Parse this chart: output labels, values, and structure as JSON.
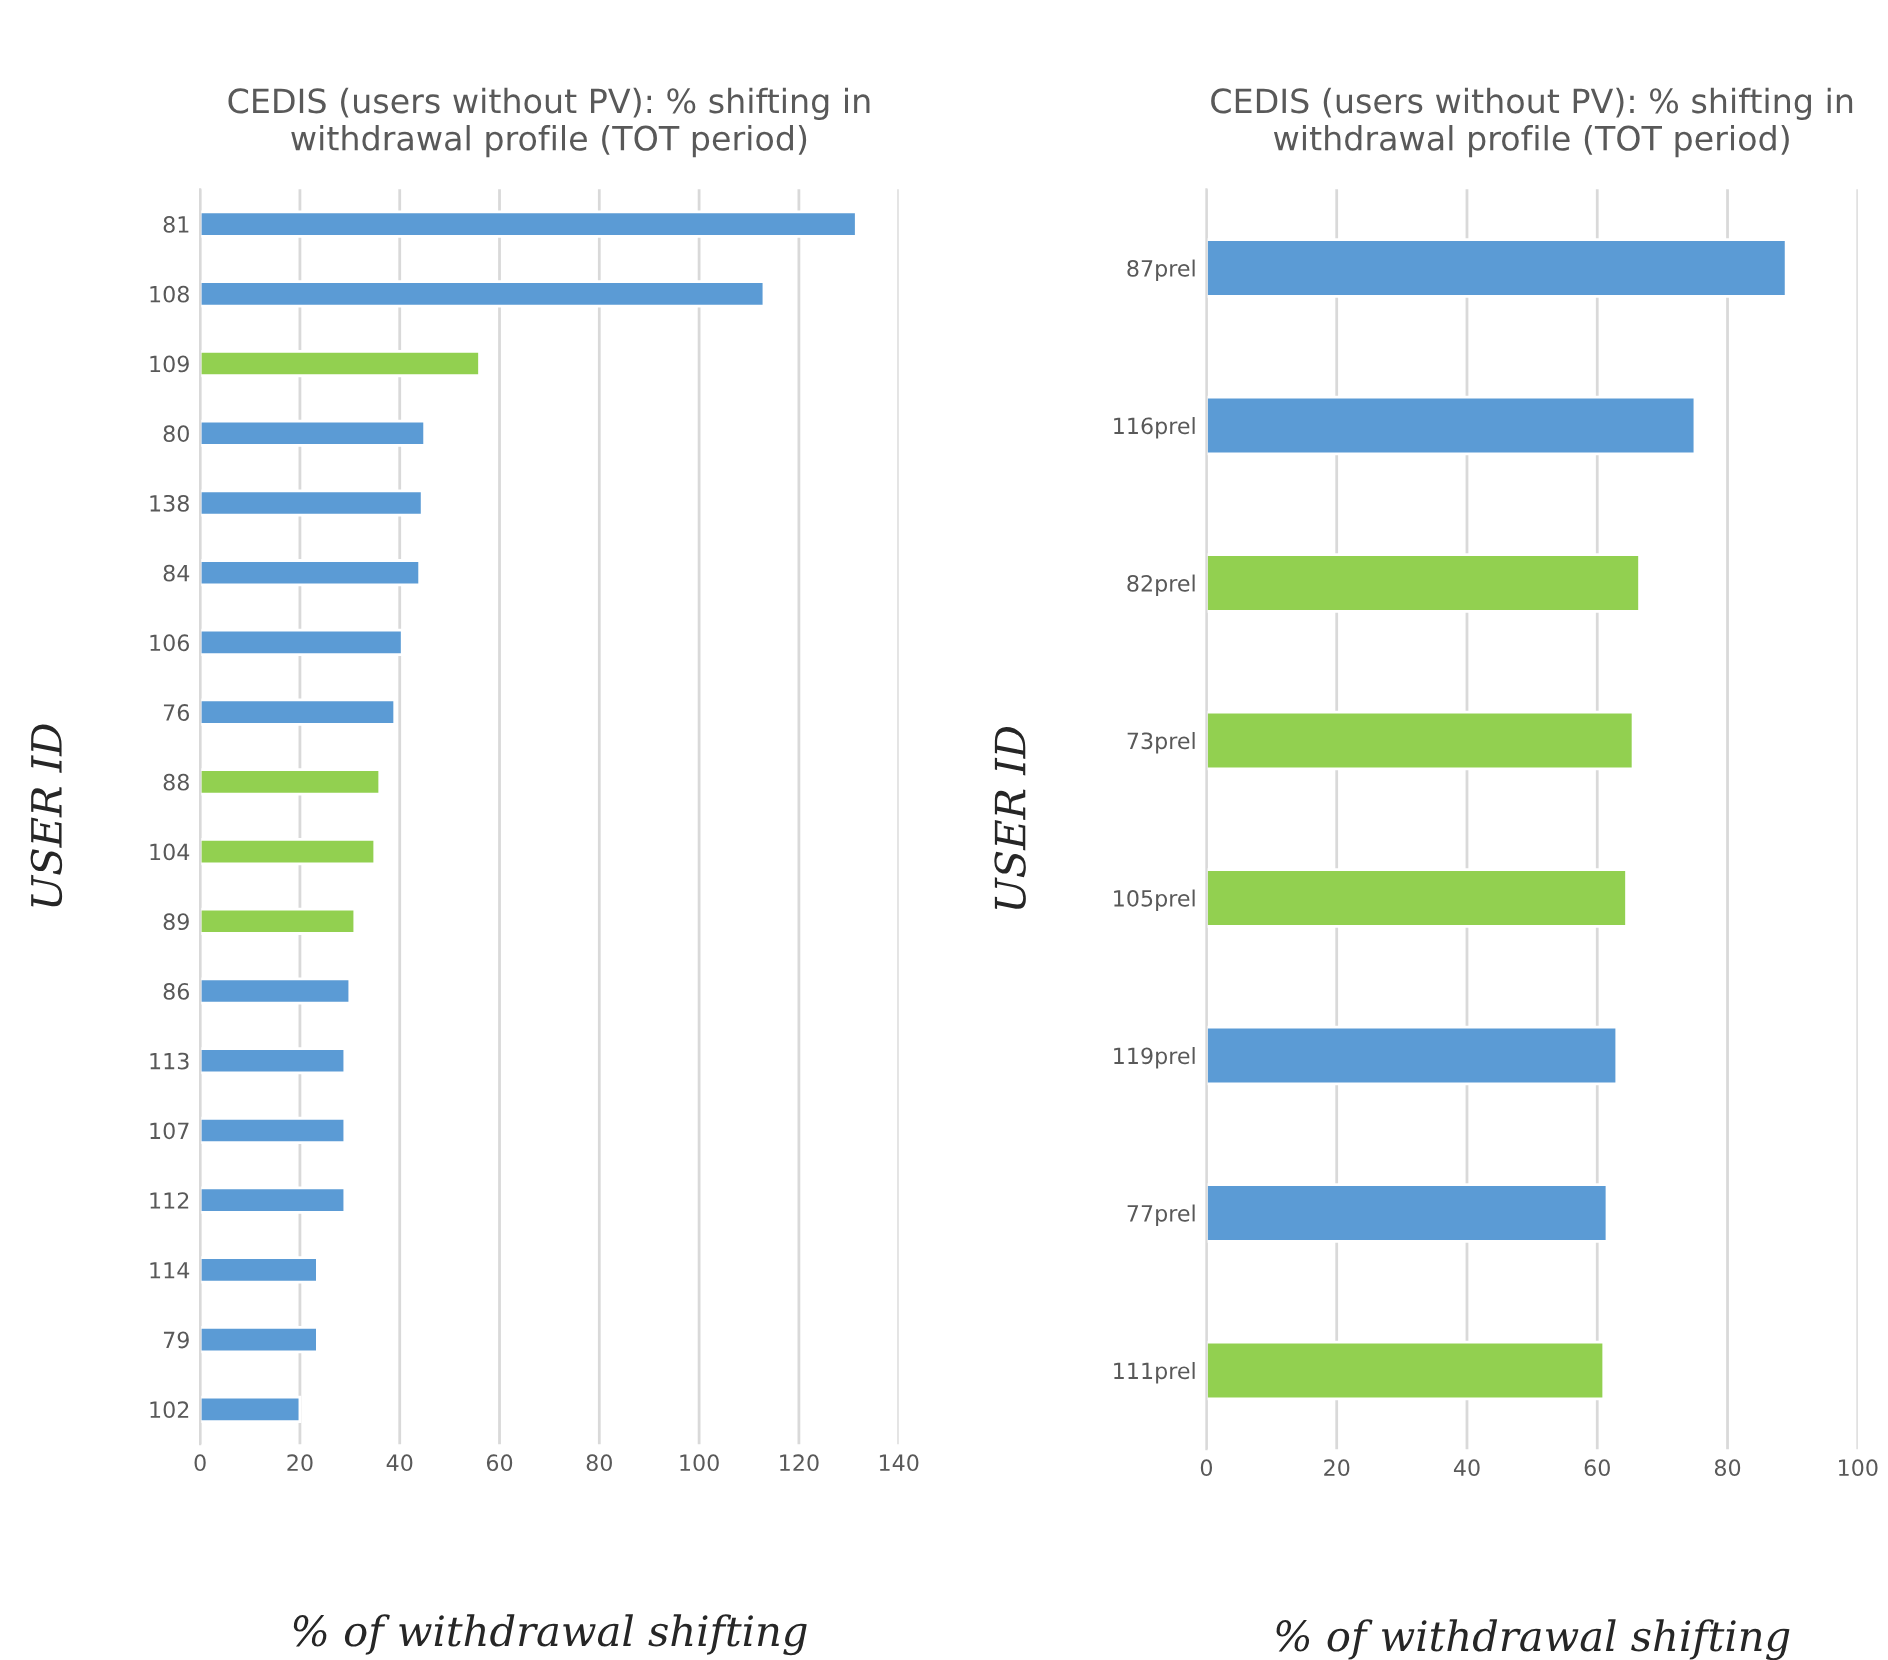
{
  "chart_data": [
    {
      "type": "bar",
      "orientation": "horizontal",
      "title": "CEDIS (users without PV): % shifting in\nwithdrawal profile (TOT period)",
      "xlabel": "% of withdrawal shifting",
      "ylabel": "USER ID",
      "categories": [
        "81",
        "108",
        "109",
        "80",
        "138",
        "84",
        "106",
        "76",
        "88",
        "104",
        "89",
        "86",
        "113",
        "107",
        "112",
        "114",
        "79",
        "102"
      ],
      "values": [
        131.5,
        113,
        56,
        45,
        44.5,
        44,
        40.5,
        39,
        36,
        35,
        31,
        30,
        29,
        29,
        29,
        23.5,
        23.5,
        20
      ],
      "colors": [
        "#5b9bd5",
        "#5b9bd5",
        "#92d050",
        "#5b9bd5",
        "#5b9bd5",
        "#5b9bd5",
        "#5b9bd5",
        "#5b9bd5",
        "#92d050",
        "#92d050",
        "#92d050",
        "#5b9bd5",
        "#5b9bd5",
        "#5b9bd5",
        "#5b9bd5",
        "#5b9bd5",
        "#5b9bd5",
        "#5b9bd5"
      ],
      "xlim": [
        0,
        140
      ],
      "xticks": [
        0,
        20,
        40,
        60,
        80,
        100,
        120,
        140
      ],
      "grid": "x",
      "legend": false
    },
    {
      "type": "bar",
      "orientation": "horizontal",
      "title": "CEDIS (users without PV): % shifting in\nwithdrawal profile (TOT period)",
      "xlabel": "% of withdrawal shifting",
      "ylabel": "USER ID",
      "categories": [
        "87prel",
        "116prel",
        "82prel",
        "73prel",
        "105prel",
        "119prel",
        "77prel",
        "111prel"
      ],
      "values": [
        89,
        75,
        66.5,
        65.5,
        64.5,
        63,
        61.5,
        61
      ],
      "colors": [
        "#5b9bd5",
        "#5b9bd5",
        "#92d050",
        "#92d050",
        "#92d050",
        "#5b9bd5",
        "#5b9bd5",
        "#92d050"
      ],
      "xlim": [
        0,
        100
      ],
      "xticks": [
        0,
        20,
        40,
        60,
        80,
        100
      ],
      "grid": "x",
      "legend": false
    }
  ]
}
